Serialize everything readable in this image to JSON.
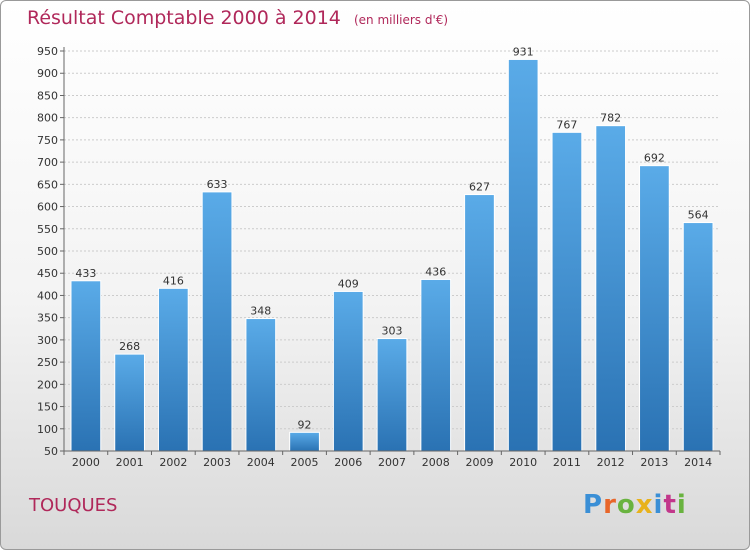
{
  "header": {
    "title": "Résultat Comptable 2000 à 2014",
    "subtitle": "(en milliers d'€)"
  },
  "footer": {
    "commune": "TOUQUES",
    "logo_text": "Proxiti",
    "logo_colors": [
      "#3a8fd6",
      "#e8662a",
      "#69b33f",
      "#e8b21c",
      "#3a8fd6",
      "#c2378b",
      "#69b33f"
    ]
  },
  "colors": {
    "accent": "#b0285a",
    "bar_top": "#5aabe8",
    "bar_bottom": "#2a72b3"
  },
  "chart_data": {
    "type": "bar",
    "title": "Résultat Comptable 2000 à 2014",
    "subtitle": "(en milliers d'€)",
    "categories": [
      "2000",
      "2001",
      "2002",
      "2003",
      "2004",
      "2005",
      "2006",
      "2007",
      "2008",
      "2009",
      "2010",
      "2011",
      "2012",
      "2013",
      "2014"
    ],
    "values": [
      433,
      268,
      416,
      633,
      348,
      92,
      409,
      303,
      436,
      627,
      931,
      767,
      782,
      692,
      564
    ],
    "ylim": [
      50,
      950
    ],
    "yticks": [
      50,
      100,
      150,
      200,
      250,
      300,
      350,
      400,
      450,
      500,
      550,
      600,
      650,
      700,
      750,
      800,
      850,
      900,
      950
    ],
    "grid": true,
    "legend": "none"
  }
}
